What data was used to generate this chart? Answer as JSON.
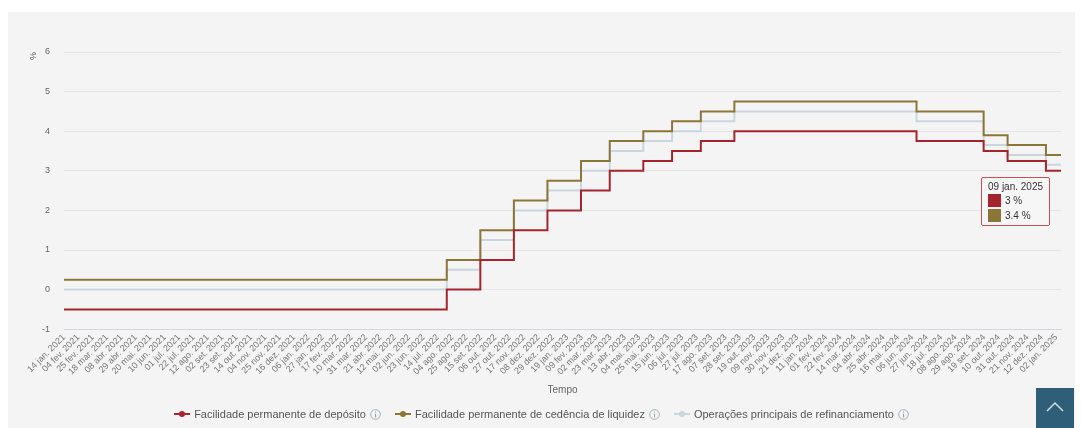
{
  "chart_data": {
    "type": "step",
    "xlabel": "Tempo",
    "ylabel": "%",
    "series": [
      {
        "name": "Facilidade permanente de depósito",
        "color": "#a4262c",
        "x": [
          "2021-01-14",
          "2022-07-27",
          "2022-09-14",
          "2022-11-02",
          "2022-12-21",
          "2023-02-08",
          "2023-03-22",
          "2023-05-10",
          "2023-06-21",
          "2023-08-02",
          "2023-09-20",
          "2024-06-12",
          "2024-09-18",
          "2024-10-23",
          "2024-12-18",
          "2025-01-09"
        ],
        "values": [
          -0.5,
          0,
          0.75,
          1.5,
          2,
          2.5,
          3,
          3.25,
          3.5,
          3.75,
          4,
          3.75,
          3.5,
          3.25,
          3,
          3
        ]
      },
      {
        "name": "Facilidade permanente de cedência de liquidez",
        "color": "#8c7538",
        "x": [
          "2021-01-14",
          "2022-07-27",
          "2022-09-14",
          "2022-11-02",
          "2022-12-21",
          "2023-02-08",
          "2023-03-22",
          "2023-05-10",
          "2023-06-21",
          "2023-08-02",
          "2023-09-20",
          "2024-06-12",
          "2024-09-18",
          "2024-10-23",
          "2024-12-18",
          "2025-01-09"
        ],
        "values": [
          0.25,
          0.75,
          1.5,
          2.25,
          2.75,
          3.25,
          3.75,
          4,
          4.25,
          4.5,
          4.75,
          4.5,
          3.9,
          3.65,
          3.4,
          3.4
        ]
      },
      {
        "name": "Operações principais de refinanciamento",
        "color": "#c9d6de",
        "x": [
          "2021-01-14",
          "2022-07-27",
          "2022-09-14",
          "2022-11-02",
          "2022-12-21",
          "2023-02-08",
          "2023-03-22",
          "2023-05-10",
          "2023-06-21",
          "2023-08-02",
          "2023-09-20",
          "2024-06-12",
          "2024-09-18",
          "2024-10-23",
          "2024-12-18",
          "2025-01-09"
        ],
        "values": [
          0,
          0.5,
          1.25,
          2,
          2.5,
          3,
          3.5,
          3.75,
          4,
          4.25,
          4.5,
          4.25,
          3.65,
          3.4,
          3.15,
          3.15
        ]
      }
    ],
    "xlim": [
      "2021-01-14",
      "2025-01-09"
    ],
    "xticks": [
      {
        "value": "2021-01-14",
        "label": "14 jan. 2021"
      },
      {
        "value": "2021-02-04",
        "label": "04 fev. 2021"
      },
      {
        "value": "2021-02-25",
        "label": "25 fev. 2021"
      },
      {
        "value": "2021-03-18",
        "label": "18 mar. 2021"
      },
      {
        "value": "2021-04-08",
        "label": "08 abr. 2021"
      },
      {
        "value": "2021-04-29",
        "label": "29 abr. 2021"
      },
      {
        "value": "2021-05-20",
        "label": "20 mai. 2021"
      },
      {
        "value": "2021-06-10",
        "label": "10 jun. 2021"
      },
      {
        "value": "2021-07-01",
        "label": "01 jul. 2021"
      },
      {
        "value": "2021-07-22",
        "label": "22 jul. 2021"
      },
      {
        "value": "2021-08-12",
        "label": "12 ago. 2021"
      },
      {
        "value": "2021-09-02",
        "label": "02 set. 2021"
      },
      {
        "value": "2021-09-23",
        "label": "23 set. 2021"
      },
      {
        "value": "2021-10-14",
        "label": "14 out. 2021"
      },
      {
        "value": "2021-11-04",
        "label": "04 nov. 2021"
      },
      {
        "value": "2021-11-25",
        "label": "25 nov. 2021"
      },
      {
        "value": "2021-12-16",
        "label": "16 dez. 2021"
      },
      {
        "value": "2022-01-06",
        "label": "06 jan. 2022"
      },
      {
        "value": "2022-01-27",
        "label": "27 jan. 2022"
      },
      {
        "value": "2022-02-17",
        "label": "17 fev. 2022"
      },
      {
        "value": "2022-03-10",
        "label": "10 mar. 2022"
      },
      {
        "value": "2022-03-31",
        "label": "31 mar. 2022"
      },
      {
        "value": "2022-04-21",
        "label": "21 abr. 2022"
      },
      {
        "value": "2022-05-12",
        "label": "12 mai. 2022"
      },
      {
        "value": "2022-06-02",
        "label": "02 jun. 2022"
      },
      {
        "value": "2022-06-23",
        "label": "23 jun. 2022"
      },
      {
        "value": "2022-07-14",
        "label": "14 jul. 2022"
      },
      {
        "value": "2022-08-04",
        "label": "04 ago. 2022"
      },
      {
        "value": "2022-08-25",
        "label": "25 ago. 2022"
      },
      {
        "value": "2022-09-15",
        "label": "15 set. 2022"
      },
      {
        "value": "2022-10-06",
        "label": "06 out. 2022"
      },
      {
        "value": "2022-10-27",
        "label": "27 out. 2022"
      },
      {
        "value": "2022-11-17",
        "label": "17 nov. 2022"
      },
      {
        "value": "2022-12-08",
        "label": "08 dez. 2022"
      },
      {
        "value": "2022-12-29",
        "label": "29 dez. 2022"
      },
      {
        "value": "2023-01-19",
        "label": "19 jan. 2023"
      },
      {
        "value": "2023-02-09",
        "label": "09 fev. 2023"
      },
      {
        "value": "2023-03-02",
        "label": "02 mar. 2023"
      },
      {
        "value": "2023-03-23",
        "label": "23 mar. 2023"
      },
      {
        "value": "2023-04-13",
        "label": "13 abr. 2023"
      },
      {
        "value": "2023-05-04",
        "label": "04 mai. 2023"
      },
      {
        "value": "2023-05-25",
        "label": "25 mai. 2023"
      },
      {
        "value": "2023-06-15",
        "label": "15 jun. 2023"
      },
      {
        "value": "2023-07-06",
        "label": "06 jul. 2023"
      },
      {
        "value": "2023-07-27",
        "label": "27 jul. 2023"
      },
      {
        "value": "2023-08-17",
        "label": "17 ago. 2023"
      },
      {
        "value": "2023-09-07",
        "label": "07 set. 2023"
      },
      {
        "value": "2023-09-28",
        "label": "28 set. 2023"
      },
      {
        "value": "2023-10-19",
        "label": "19 out. 2023"
      },
      {
        "value": "2023-11-09",
        "label": "09 nov. 2023"
      },
      {
        "value": "2023-11-30",
        "label": "30 nov. 2023"
      },
      {
        "value": "2023-12-21",
        "label": "21 dez. 2023"
      },
      {
        "value": "2024-01-11",
        "label": "11 jan. 2024"
      },
      {
        "value": "2024-02-01",
        "label": "01 fev. 2024"
      },
      {
        "value": "2024-02-22",
        "label": "22 fev. 2024"
      },
      {
        "value": "2024-03-14",
        "label": "14 mar. 2024"
      },
      {
        "value": "2024-04-04",
        "label": "04 abr. 2024"
      },
      {
        "value": "2024-04-25",
        "label": "25 abr. 2024"
      },
      {
        "value": "2024-05-16",
        "label": "16 mai. 2024"
      },
      {
        "value": "2024-06-06",
        "label": "06 jun. 2024"
      },
      {
        "value": "2024-06-27",
        "label": "27 jun. 2024"
      },
      {
        "value": "2024-07-18",
        "label": "18 jul. 2024"
      },
      {
        "value": "2024-08-08",
        "label": "08 ago. 2024"
      },
      {
        "value": "2024-08-29",
        "label": "29 ago. 2024"
      },
      {
        "value": "2024-09-19",
        "label": "19 set. 2024"
      },
      {
        "value": "2024-10-10",
        "label": "10 out. 2024"
      },
      {
        "value": "2024-10-31",
        "label": "31 out. 2024"
      },
      {
        "value": "2024-11-21",
        "label": "21 nov. 2024"
      },
      {
        "value": "2024-12-12",
        "label": "12 dez. 2024"
      },
      {
        "value": "2025-01-02",
        "label": "02 jan. 2025"
      }
    ],
    "ylim": [
      -1,
      6
    ],
    "yticks": [
      -1,
      0,
      1,
      2,
      3,
      4,
      5,
      6
    ],
    "grid": "y",
    "legend": "bottom",
    "annotations": [
      "09 jan. 2025",
      "3 %",
      "3.4 %"
    ]
  }
}
